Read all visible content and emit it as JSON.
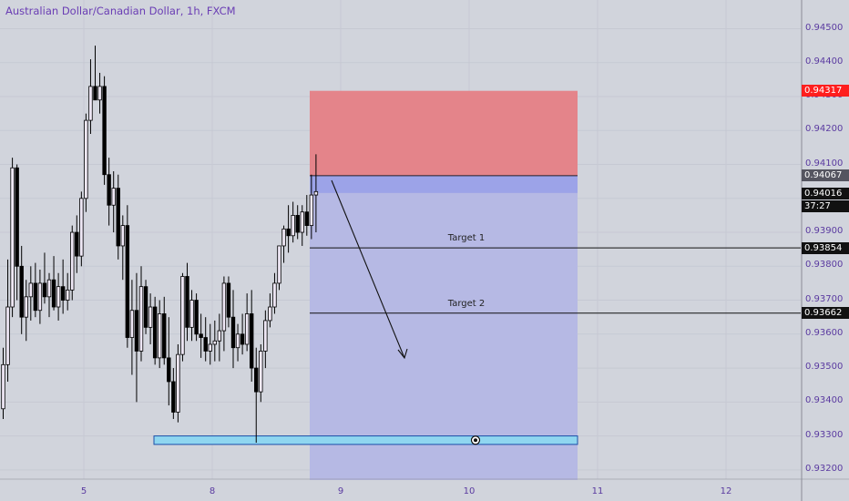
{
  "symbol_title": "Australian Dollar/Canadian Dollar, 1h, FXCM",
  "y_axis_ticks": [
    "0.94500",
    "0.94400",
    "0.94300",
    "0.94200",
    "0.94100",
    "0.94000",
    "0.93900",
    "0.93800",
    "0.93700",
    "0.93600",
    "0.93500",
    "0.93400",
    "0.93300",
    "0.93200"
  ],
  "x_axis_ticks": [
    "5",
    "8",
    "9",
    "10",
    "11",
    "12"
  ],
  "price_labels": {
    "stop_loss": "0.94317",
    "entry": "0.94067",
    "current_price": "0.94016",
    "countdown": "37:27",
    "target_1": "0.93854",
    "target_2": "0.93662"
  },
  "annotations": {
    "target_1": "Target 1",
    "target_2": "Target 2"
  },
  "colors": {
    "background": "#d1d4dc",
    "bull_candle": "#efe8f6",
    "bear_candle": "#000000",
    "stop_zone": "#e4848a",
    "profit_zone": "#b6b9e4",
    "entry_band": "#9ca3e8",
    "support_zone": "#8fd6f0",
    "stop_label_bg": "#ff1e1e"
  },
  "chart_data": {
    "type": "candlestick",
    "instrument": "Australian Dollar/Canadian Dollar",
    "timeframe": "1h",
    "ylim": [
      0.9317,
      0.9459
    ],
    "levels": {
      "stop_loss": 0.94317,
      "entry": 0.94067,
      "current": 0.94016,
      "target_1": 0.93854,
      "target_2": 0.93662,
      "support_zone": [
        0.93275,
        0.933
      ]
    },
    "candles": [
      [
        0.9338,
        0.9356,
        0.9335,
        0.9351
      ],
      [
        0.9351,
        0.9382,
        0.9346,
        0.9368
      ],
      [
        0.9368,
        0.9412,
        0.9365,
        0.9409
      ],
      [
        0.9409,
        0.941,
        0.937,
        0.938
      ],
      [
        0.938,
        0.9386,
        0.936,
        0.9365
      ],
      [
        0.9365,
        0.9376,
        0.9358,
        0.9371
      ],
      [
        0.9371,
        0.938,
        0.9364,
        0.9375
      ],
      [
        0.9375,
        0.9381,
        0.9365,
        0.9367
      ],
      [
        0.9367,
        0.9379,
        0.9363,
        0.9375
      ],
      [
        0.9375,
        0.9384,
        0.9369,
        0.9371
      ],
      [
        0.9371,
        0.9378,
        0.9365,
        0.9376
      ],
      [
        0.9376,
        0.9383,
        0.9367,
        0.9368
      ],
      [
        0.9368,
        0.9378,
        0.9364,
        0.9374
      ],
      [
        0.9374,
        0.9382,
        0.9366,
        0.937
      ],
      [
        0.937,
        0.9378,
        0.9367,
        0.9373
      ],
      [
        0.9373,
        0.9392,
        0.937,
        0.939
      ],
      [
        0.939,
        0.9395,
        0.9378,
        0.9383
      ],
      [
        0.9383,
        0.9402,
        0.938,
        0.94
      ],
      [
        0.94,
        0.9425,
        0.9396,
        0.9423
      ],
      [
        0.9423,
        0.9441,
        0.9419,
        0.9433
      ],
      [
        0.9433,
        0.9445,
        0.943,
        0.9429
      ],
      [
        0.9429,
        0.9437,
        0.9425,
        0.9433
      ],
      [
        0.9433,
        0.9436,
        0.9404,
        0.9407
      ],
      [
        0.9407,
        0.9412,
        0.9392,
        0.9398
      ],
      [
        0.9398,
        0.9408,
        0.939,
        0.9403
      ],
      [
        0.9403,
        0.9407,
        0.9382,
        0.9386
      ],
      [
        0.9386,
        0.9395,
        0.9376,
        0.9392
      ],
      [
        0.9392,
        0.9398,
        0.9356,
        0.9359
      ],
      [
        0.9359,
        0.9376,
        0.9348,
        0.9367
      ],
      [
        0.9367,
        0.9378,
        0.934,
        0.9355
      ],
      [
        0.9355,
        0.938,
        0.9352,
        0.9374
      ],
      [
        0.9374,
        0.9376,
        0.936,
        0.9362
      ],
      [
        0.9362,
        0.9372,
        0.9357,
        0.9368
      ],
      [
        0.9368,
        0.9371,
        0.9351,
        0.9353
      ],
      [
        0.9353,
        0.937,
        0.935,
        0.9366
      ],
      [
        0.9366,
        0.9371,
        0.9351,
        0.9353
      ],
      [
        0.9353,
        0.9365,
        0.9339,
        0.9346
      ],
      [
        0.9346,
        0.935,
        0.9335,
        0.9337
      ],
      [
        0.9337,
        0.9357,
        0.9334,
        0.9354
      ],
      [
        0.9354,
        0.9378,
        0.9352,
        0.9377
      ],
      [
        0.9377,
        0.9381,
        0.9358,
        0.9362
      ],
      [
        0.9362,
        0.9373,
        0.9358,
        0.937
      ],
      [
        0.937,
        0.9372,
        0.9358,
        0.936
      ],
      [
        0.936,
        0.9366,
        0.9353,
        0.9359
      ],
      [
        0.9359,
        0.9365,
        0.9352,
        0.9355
      ],
      [
        0.9355,
        0.9363,
        0.9351,
        0.9357
      ],
      [
        0.9357,
        0.9364,
        0.9352,
        0.9358
      ],
      [
        0.9358,
        0.9366,
        0.9352,
        0.9361
      ],
      [
        0.9361,
        0.9377,
        0.9355,
        0.9375
      ],
      [
        0.9375,
        0.9377,
        0.9362,
        0.9365
      ],
      [
        0.9365,
        0.9373,
        0.935,
        0.9356
      ],
      [
        0.9356,
        0.9363,
        0.9352,
        0.936
      ],
      [
        0.936,
        0.9366,
        0.9354,
        0.9357
      ],
      [
        0.9357,
        0.9372,
        0.9355,
        0.9366
      ],
      [
        0.9366,
        0.9373,
        0.9346,
        0.935
      ],
      [
        0.935,
        0.9356,
        0.9328,
        0.9343
      ],
      [
        0.9343,
        0.9357,
        0.934,
        0.9355
      ],
      [
        0.9355,
        0.9367,
        0.935,
        0.9364
      ],
      [
        0.9364,
        0.9372,
        0.9362,
        0.9368
      ],
      [
        0.9368,
        0.9378,
        0.9366,
        0.9375
      ],
      [
        0.9375,
        0.9386,
        0.9373,
        0.9386
      ],
      [
        0.9386,
        0.9392,
        0.9381,
        0.9391
      ],
      [
        0.9391,
        0.9398,
        0.9384,
        0.9389
      ],
      [
        0.9389,
        0.9399,
        0.9387,
        0.9395
      ],
      [
        0.9395,
        0.9398,
        0.9388,
        0.939
      ],
      [
        0.939,
        0.9398,
        0.9386,
        0.9396
      ],
      [
        0.9396,
        0.9401,
        0.9389,
        0.9392
      ],
      [
        0.9392,
        0.9407,
        0.9388,
        0.9401
      ],
      [
        0.9401,
        0.9413,
        0.939,
        0.9402
      ]
    ]
  }
}
